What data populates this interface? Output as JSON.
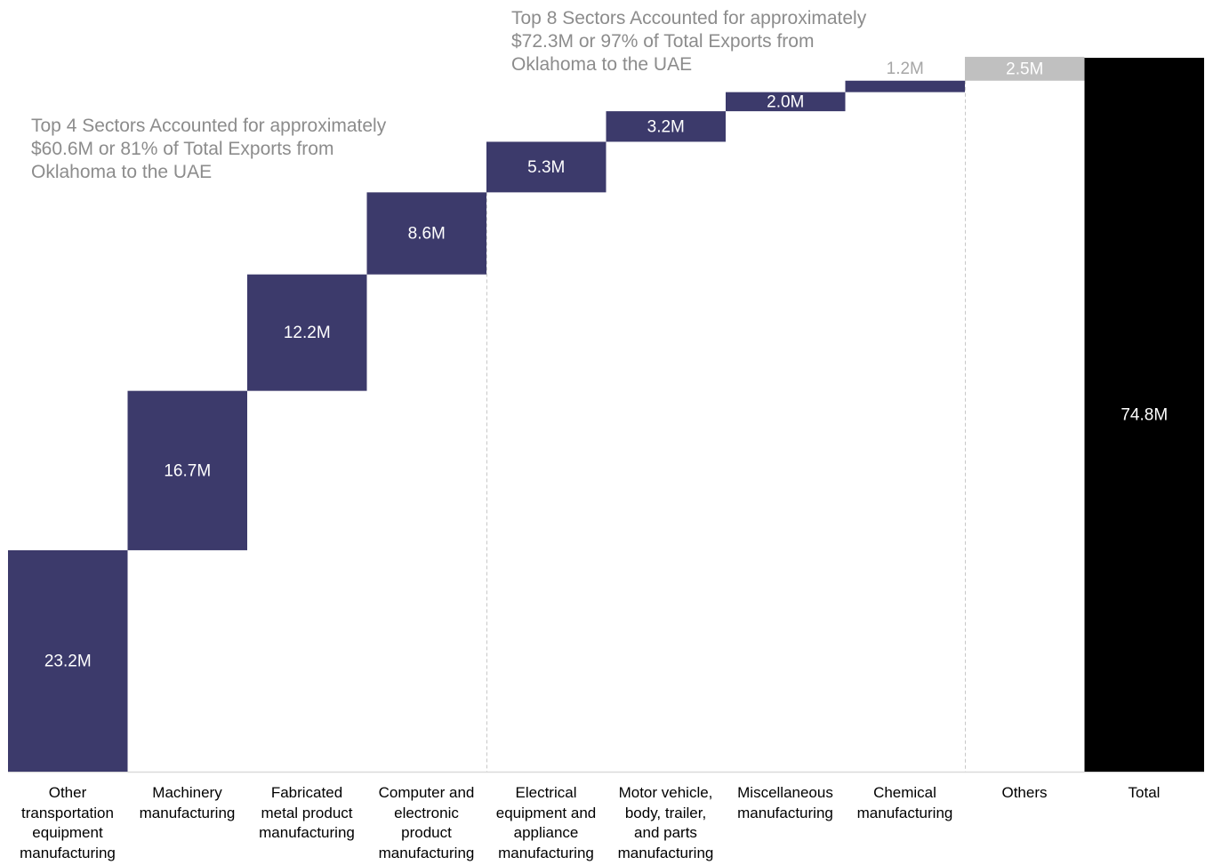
{
  "chart_data": {
    "type": "bar",
    "subtype": "waterfall",
    "categories": [
      "Other\ntransportation\nequipment\nmanufacturing",
      "Machinery\nmanufacturing",
      "Fabricated\nmetal product\nmanufacturing",
      "Computer and\nelectronic\nproduct\nmanufacturing",
      "Electrical\nequipment and\nappliance\nmanufacturing",
      "Motor vehicle,\nbody, trailer,\nand parts\nmanufacturing",
      "Miscellaneous\nmanufacturing",
      "Chemical\nmanufacturing",
      "Others",
      "Total"
    ],
    "values": [
      23.2,
      16.7,
      12.2,
      8.6,
      5.3,
      3.2,
      2.0,
      1.2,
      2.5,
      74.8
    ],
    "value_labels": [
      "23.2M",
      "16.7M",
      "12.2M",
      "8.6M",
      "5.3M",
      "3.2M",
      "2.0M",
      "1.2M",
      "2.5M",
      "74.8M"
    ],
    "bar_kinds": [
      "step",
      "step",
      "step",
      "step",
      "step",
      "step",
      "step",
      "step",
      "others",
      "total"
    ],
    "ylim": [
      0,
      74.8
    ],
    "grid": false,
    "separators_after_index": [
      3,
      7
    ],
    "annotations": [
      "Top 4 Sectors Accounted for approximately\n$60.6M or 81% of Total Exports from\nOklahoma to the UAE",
      "Top 8 Sectors Accounted for approximately\n$72.3M or 97% of Total Exports from\nOklahoma to the UAE"
    ],
    "colors": {
      "step": "#3c3a6b",
      "others": "#c0c0c0",
      "total": "#000000",
      "label_inside": "#ffffff",
      "label_above": "#a6a6a6",
      "annotation": "#8c8c8c"
    }
  }
}
